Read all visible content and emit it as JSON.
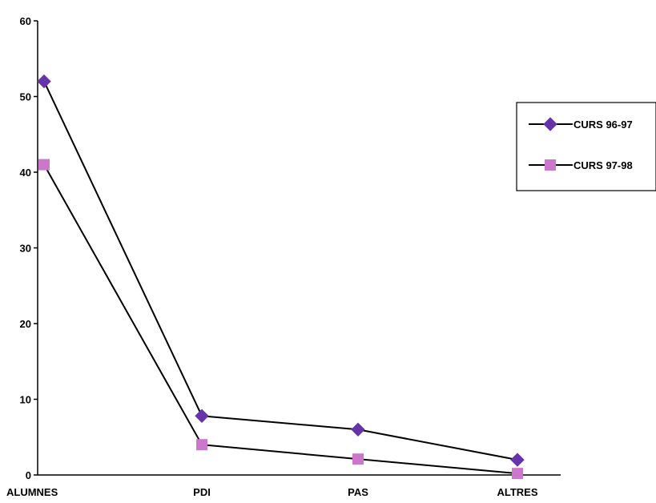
{
  "chart_data": {
    "type": "line",
    "categories": [
      "ALUMNES",
      "PDI",
      "PAS",
      "ALTRES"
    ],
    "series": [
      {
        "name": "CURS 96-97",
        "values": [
          52,
          7.8,
          6,
          2
        ],
        "color": "#6633AA",
        "marker": "diamond"
      },
      {
        "name": "CURS 97-98",
        "values": [
          41,
          4,
          2.1,
          0.2
        ],
        "color": "#CC77CC",
        "marker": "square"
      }
    ],
    "ylim": [
      0,
      60
    ],
    "yticks": [
      "0",
      "10",
      "20",
      "30",
      "40",
      "50",
      "60"
    ],
    "line_color": "#000000",
    "grid": false,
    "legend_position": "right"
  }
}
